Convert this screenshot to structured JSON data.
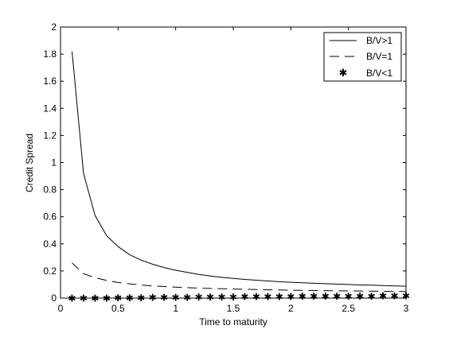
{
  "chart_data": {
    "type": "line",
    "title": "",
    "xlabel": "Time to maturity",
    "ylabel": "Credit Spread",
    "xlim": [
      0,
      3
    ],
    "ylim": [
      0,
      2
    ],
    "xticks": [
      "0",
      "0.5",
      "1",
      "1.5",
      "2",
      "2.5",
      "3"
    ],
    "yticks": [
      "0",
      "0.2",
      "0.4",
      "0.6",
      "0.8",
      "1",
      "1.2",
      "1.4",
      "1.6",
      "1.8",
      "2"
    ],
    "grid": false,
    "legend_position": "top-right",
    "x": [
      0.1,
      0.2,
      0.3,
      0.4,
      0.5,
      0.6,
      0.7,
      0.8,
      0.9,
      1.0,
      1.1,
      1.2,
      1.3,
      1.4,
      1.5,
      1.6,
      1.7,
      1.8,
      1.9,
      2.0,
      2.1,
      2.2,
      2.3,
      2.4,
      2.5,
      2.6,
      2.7,
      2.8,
      2.9,
      3.0
    ],
    "series": [
      {
        "name": "B/V>1",
        "style": "solid",
        "values": [
          1.82,
          0.92,
          0.61,
          0.46,
          0.38,
          0.32,
          0.28,
          0.25,
          0.225,
          0.205,
          0.19,
          0.175,
          0.163,
          0.153,
          0.145,
          0.138,
          0.132,
          0.126,
          0.121,
          0.117,
          0.113,
          0.109,
          0.106,
          0.103,
          0.1,
          0.097,
          0.095,
          0.092,
          0.09,
          0.088
        ]
      },
      {
        "name": "B/V=1",
        "style": "dashed",
        "values": [
          0.26,
          0.18,
          0.15,
          0.13,
          0.115,
          0.105,
          0.097,
          0.09,
          0.085,
          0.081,
          0.077,
          0.074,
          0.071,
          0.069,
          0.067,
          0.065,
          0.063,
          0.061,
          0.06,
          0.058,
          0.057,
          0.056,
          0.055,
          0.054,
          0.053,
          0.052,
          0.051,
          0.05,
          0.049,
          0.048
        ]
      },
      {
        "name": "B/V<1",
        "style": "star-markers",
        "values": [
          0.0,
          0.0,
          0.0,
          0.001,
          0.002,
          0.003,
          0.004,
          0.005,
          0.006,
          0.006,
          0.007,
          0.008,
          0.009,
          0.01,
          0.01,
          0.011,
          0.012,
          0.012,
          0.013,
          0.013,
          0.014,
          0.014,
          0.015,
          0.015,
          0.016,
          0.016,
          0.016,
          0.017,
          0.017,
          0.017
        ]
      }
    ]
  }
}
